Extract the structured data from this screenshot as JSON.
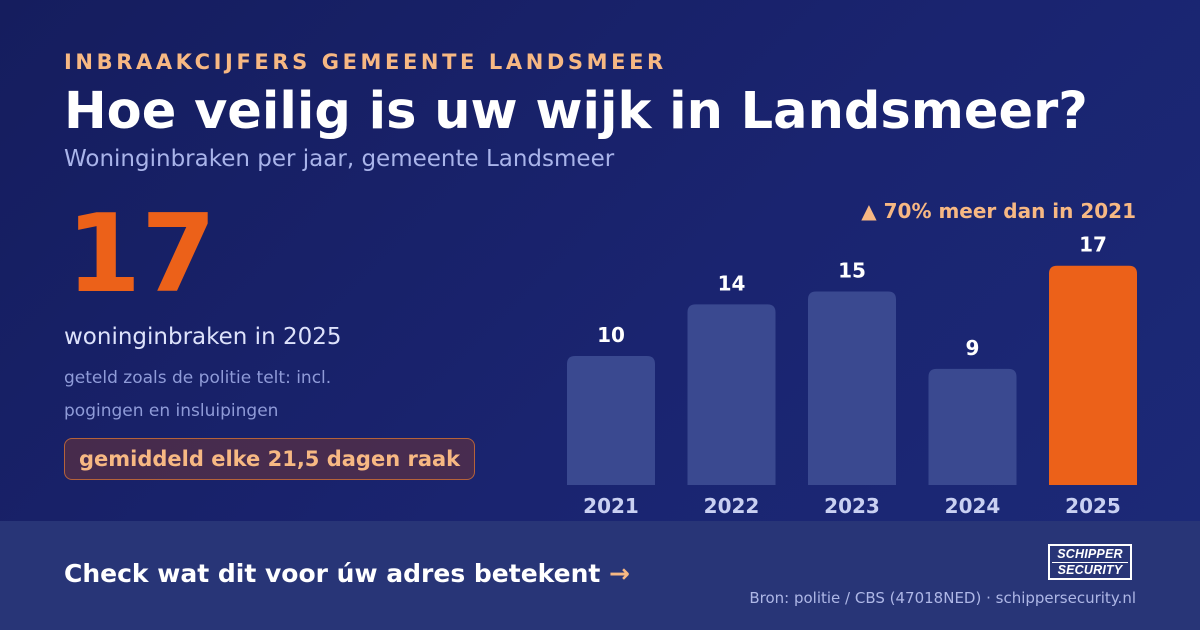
{
  "header": {
    "kicker": "INBRAAKCIJFERS GEMEENTE LANDSMEER",
    "title": "Hoe veilig is uw wijk in Landsmeer?",
    "subtitle": "Woninginbraken per jaar, gemeente Landsmeer"
  },
  "highlight": {
    "number": "17",
    "label": "woninginbraken in 2025",
    "note": "geteld zoals de politie telt: incl. pogingen en insluipingen",
    "pill": "gemiddeld elke 21,5 dagen raak"
  },
  "trend": "▲ 70% meer dan in 2021",
  "chart_data": {
    "type": "bar",
    "categories": [
      "2021",
      "2022",
      "2023",
      "2024",
      "2025"
    ],
    "values": [
      10,
      14,
      15,
      9,
      17
    ],
    "title": "Woninginbraken per jaar, gemeente Landsmeer",
    "xlabel": "",
    "ylabel": "",
    "ylim": [
      0,
      17
    ],
    "grid": false,
    "colors": {
      "default": "#3a4990",
      "highlight": "#ec6119",
      "highlight_category": "2025"
    }
  },
  "footer": {
    "cta": "Check wat dit voor úw adres betekent",
    "cta_arrow": "→",
    "source": "Bron: politie / CBS (47018NED) · schippersecurity.nl",
    "logo_line1": "SCHIPPER",
    "logo_line2": "SECURITY"
  }
}
